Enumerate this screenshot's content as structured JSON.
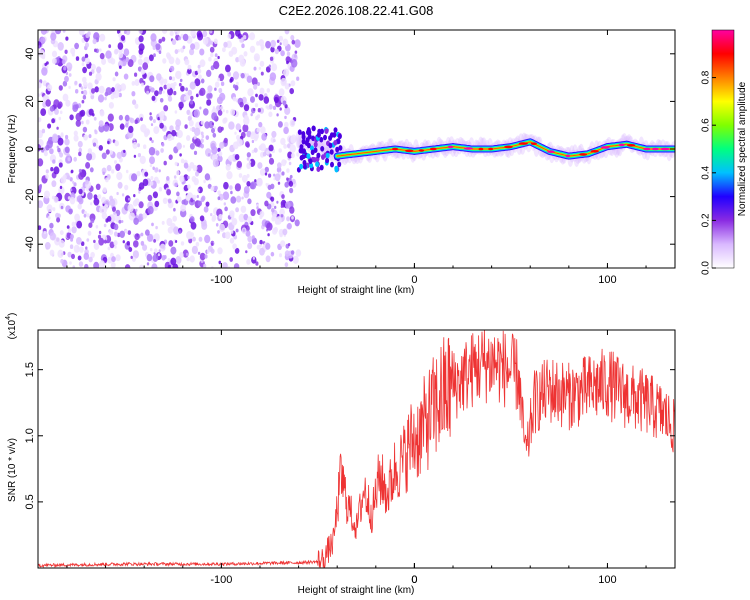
{
  "title": "C2E2.2026.108.22.41.G08",
  "chart_data": [
    {
      "type": "heatmap",
      "name": "spectrogram",
      "xlabel": "Height of straight line (km)",
      "ylabel": "Frequency (Hz)",
      "xlim": [
        -195,
        135
      ],
      "ylim": [
        -50,
        50
      ],
      "xticks": [
        -100,
        0,
        100
      ],
      "yticks": [
        40,
        20,
        0,
        -20,
        -40
      ],
      "noise_region_x": [
        -195,
        -60
      ],
      "signal_start_x": -60,
      "signal_trace": {
        "x": [
          -60,
          -50,
          -40,
          -30,
          -20,
          -10,
          0,
          10,
          20,
          30,
          40,
          50,
          60,
          70,
          80,
          90,
          100,
          110,
          120,
          130
        ],
        "freq": [
          3,
          2,
          -3,
          -2,
          -1,
          0,
          -1,
          0,
          1,
          0,
          0,
          1,
          3,
          -1,
          -3,
          -2,
          1,
          2,
          0,
          0
        ]
      },
      "colorbar": {
        "label": "Normalized spectral amplitude",
        "range": [
          0,
          1
        ],
        "ticks": [
          "0.0",
          "0.2",
          "0.4",
          "0.6",
          "0.8"
        ],
        "colors": [
          "#ffffff",
          "#d9b8ff",
          "#8a2be2",
          "#2000ff",
          "#00c0ff",
          "#00ff80",
          "#80ff00",
          "#ffff00",
          "#ff8000",
          "#ff0000",
          "#ff00a0"
        ]
      }
    },
    {
      "type": "line",
      "name": "snr",
      "xlabel": "Height of straight line (km)",
      "ylabel": "SNR (10 * v/v)",
      "scale_label": "(x10",
      "scale_exp": "4",
      "xlim": [
        -195,
        135
      ],
      "ylim": [
        0,
        1.8
      ],
      "xticks": [
        -100,
        0,
        100
      ],
      "yticks": [
        "1.5",
        "1.0",
        "0.5"
      ],
      "ytick_values": [
        1.5,
        1.0,
        0.5
      ],
      "color": "#ee3333",
      "envelope": {
        "x": [
          -195,
          -150,
          -100,
          -60,
          -48,
          -42,
          -38,
          -35,
          -30,
          -26,
          -22,
          -18,
          -14,
          -10,
          -6,
          -2,
          2,
          6,
          10,
          14,
          18,
          22,
          26,
          30,
          36,
          42,
          48,
          54,
          56,
          58,
          62,
          70,
          80,
          90,
          100,
          110,
          120,
          130,
          135
        ],
        "y": [
          0.02,
          0.03,
          0.03,
          0.04,
          0.05,
          0.2,
          0.7,
          0.5,
          0.3,
          0.6,
          0.4,
          0.7,
          0.55,
          0.75,
          0.8,
          0.95,
          1.0,
          1.1,
          1.2,
          1.3,
          1.35,
          1.4,
          1.45,
          1.5,
          1.55,
          1.55,
          1.5,
          1.45,
          1.1,
          0.85,
          1.25,
          1.35,
          1.3,
          1.35,
          1.4,
          1.3,
          1.25,
          1.15,
          1.05
        ]
      }
    }
  ]
}
